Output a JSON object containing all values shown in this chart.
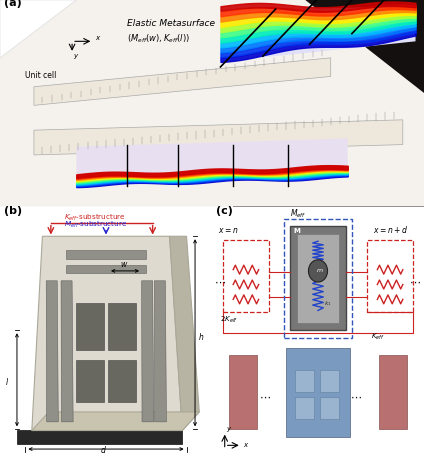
{
  "fig_width": 4.24,
  "fig_height": 4.54,
  "dpi": 100,
  "bg_color": "#ffffff",
  "panel_a": {
    "label": "(a)",
    "dark_bg": "#1a1212",
    "paper_color": "#f2eeea",
    "fold_color": "#f8f6f4",
    "ruler_color": "#ede8e0",
    "text_elastic": "Elastic Metasurface",
    "text_formula": "$(M_{eff}(w), K_{eff}(l))$",
    "text_unitcell": "Unit cell"
  },
  "panel_b": {
    "label": "(b)",
    "Keff_color": "#cc2222",
    "Meff_color": "#2222cc",
    "body_color": "#dedad0",
    "body_side": "#b8b4a8",
    "slot_color": "#909088",
    "hole_color": "#686860",
    "base_color": "#282828"
  },
  "panel_c": {
    "label": "(c)",
    "red_color": "#cc2222",
    "blue_color": "#3355bb",
    "center_rect_color": "#888888",
    "center_inner": "#aaaaaa",
    "spring_blue": "#2244cc",
    "unit_blue": "#7a9abf",
    "unit_red": "#b87070"
  }
}
